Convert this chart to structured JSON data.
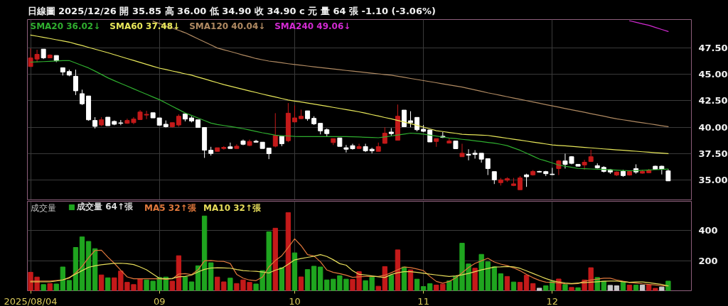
{
  "chart_data": [
    {
      "type": "candlestick",
      "title": "日線圖 2025/12/26 開 35.85 高 36.00 低 34.90 收 34.90 c 元 量 64 張 -1.10 (-3.06%)",
      "categories": [
        "2025/08/04",
        null,
        null,
        null,
        null,
        null,
        null,
        null,
        null,
        null,
        null,
        null,
        null,
        null,
        null,
        null,
        null,
        null,
        null,
        null,
        "09",
        null,
        null,
        null,
        null,
        null,
        null,
        null,
        null,
        null,
        null,
        null,
        null,
        null,
        null,
        null,
        null,
        null,
        null,
        null,
        null,
        "10",
        null,
        null,
        null,
        null,
        null,
        null,
        null,
        null,
        null,
        null,
        null,
        null,
        null,
        null,
        null,
        null,
        null,
        null,
        null,
        "11",
        null,
        null,
        null,
        null,
        null,
        null,
        null,
        null,
        null,
        null,
        null,
        null,
        null,
        null,
        null,
        null,
        null,
        null,
        null,
        "12",
        null,
        null,
        null,
        null,
        null,
        null,
        null,
        null,
        null,
        null,
        null,
        null,
        null,
        null,
        null,
        null,
        null,
        null
      ],
      "ohlc": [
        [
          45.74,
          47.46,
          45.74,
          46.56
        ],
        [
          46.45,
          47.34,
          46.16,
          46.9
        ],
        [
          47.39,
          47.39,
          46.45,
          46.56
        ],
        [
          46.56,
          46.9,
          46.56,
          46.83
        ],
        [
          46.79,
          46.79,
          46.16,
          46.29
        ],
        [
          45.63,
          45.63,
          44.89,
          45.22
        ],
        [
          45.27,
          45.45,
          44.82,
          44.93
        ],
        [
          44.82,
          45.45,
          43.04,
          43.44
        ],
        [
          43.17,
          43.55,
          42.1,
          42.21
        ],
        [
          42.95,
          42.95,
          40.6,
          40.69
        ],
        [
          40.63,
          40.94,
          39.87,
          40.07
        ],
        [
          40.2,
          40.94,
          40.09,
          40.69
        ],
        [
          40.94,
          40.94,
          40.13,
          40.13
        ],
        [
          40.54,
          40.63,
          40.18,
          40.27
        ],
        [
          40.4,
          40.67,
          40.18,
          40.36
        ],
        [
          40.36,
          40.8,
          40.31,
          40.63
        ],
        [
          40.42,
          40.94,
          40.27,
          40.76
        ],
        [
          40.71,
          41.61,
          40.67,
          41.43
        ],
        [
          41.14,
          41.54,
          40.76,
          41.21
        ],
        [
          41.36,
          41.36,
          40.87,
          40.87
        ],
        [
          40.87,
          40.87,
          40.13,
          40.18
        ],
        [
          40.27,
          40.63,
          39.96,
          40.04
        ],
        [
          40.04,
          40.42,
          39.96,
          40.42
        ],
        [
          40.2,
          41.21,
          40.04,
          41.03
        ],
        [
          41.25,
          41.25,
          40.54,
          40.76
        ],
        [
          40.87,
          41.03,
          40.45,
          40.58
        ],
        [
          40.69,
          40.69,
          39.96,
          39.96
        ],
        [
          39.96,
          39.96,
          37.08,
          37.81
        ],
        [
          37.81,
          38.13,
          37.3,
          37.5
        ],
        [
          37.7,
          38.04,
          37.7,
          38.04
        ],
        [
          37.97,
          38.19,
          37.86,
          38.08
        ],
        [
          38.13,
          38.53,
          37.97,
          37.97
        ],
        [
          37.97,
          38.37,
          37.95,
          38.19
        ],
        [
          38.68,
          38.82,
          38.28,
          38.37
        ],
        [
          38.26,
          38.82,
          38.19,
          38.64
        ],
        [
          38.66,
          38.79,
          38.53,
          38.57
        ],
        [
          38.57,
          38.57,
          37.97,
          37.97
        ],
        [
          38.01,
          38.01,
          36.96,
          37.48
        ],
        [
          38.19,
          41.32,
          38.08,
          39.2
        ],
        [
          39.13,
          39.13,
          38.19,
          38.42
        ],
        [
          38.71,
          42.28,
          38.57,
          41.32
        ],
        [
          40.49,
          42.05,
          40.42,
          40.87
        ],
        [
          40.8,
          41.65,
          40.76,
          41.03
        ],
        [
          41.54,
          41.54,
          40.6,
          40.8
        ],
        [
          40.83,
          41.03,
          40.2,
          40.31
        ],
        [
          40.36,
          40.36,
          39.31,
          39.64
        ],
        [
          39.75,
          39.87,
          39.13,
          39.38
        ],
        [
          38.53,
          38.91,
          38.3,
          38.91
        ],
        [
          38.97,
          38.97,
          38.17,
          38.17
        ],
        [
          38.04,
          38.3,
          37.59,
          37.9
        ],
        [
          38.24,
          38.42,
          37.86,
          37.95
        ],
        [
          37.97,
          38.42,
          37.92,
          38.15
        ],
        [
          38.15,
          38.42,
          37.63,
          37.75
        ],
        [
          37.9,
          38.04,
          37.52,
          37.75
        ],
        [
          37.7,
          38.53,
          37.7,
          38.15
        ],
        [
          38.46,
          39.98,
          38.42,
          39.42
        ],
        [
          39.53,
          39.91,
          39.2,
          39.38
        ],
        [
          38.75,
          42.14,
          38.75,
          41.03
        ],
        [
          41.61,
          41.61,
          40.04,
          40.04
        ],
        [
          40.6,
          41.5,
          39.98,
          40.42
        ],
        [
          40.92,
          40.92,
          39.6,
          39.75
        ],
        [
          39.8,
          40.2,
          39.53,
          39.6
        ],
        [
          39.73,
          39.73,
          38.59,
          38.59
        ],
        [
          38.64,
          38.91,
          38.13,
          38.91
        ],
        [
          39.13,
          39.53,
          38.97,
          39.02
        ],
        [
          38.48,
          38.97,
          38.46,
          38.68
        ],
        [
          38.68,
          38.68,
          37.95,
          37.95
        ],
        [
          37.19,
          38.42,
          37.19,
          37.52
        ],
        [
          37.41,
          37.9,
          36.85,
          37.34
        ],
        [
          37.52,
          37.81,
          37.01,
          37.41
        ],
        [
          37.52,
          37.52,
          36.63,
          36.96
        ],
        [
          37.01,
          37.01,
          35.45,
          36.07
        ],
        [
          35.78,
          35.78,
          34.6,
          35.0
        ],
        [
          34.73,
          35.18,
          34.46,
          35.0
        ],
        [
          34.96,
          35.25,
          34.8,
          35.11
        ],
        [
          34.46,
          35.18,
          34.4,
          34.62
        ],
        [
          34.06,
          35.36,
          34.06,
          35.18
        ],
        [
          35.47,
          35.58,
          34.33,
          35.29
        ],
        [
          35.47,
          35.92,
          35.4,
          35.8
        ],
        [
          35.8,
          35.85,
          35.69,
          35.74
        ],
        [
          35.78,
          35.85,
          35.36,
          35.58
        ],
        [
          35.54,
          36.14,
          35.45,
          35.49
        ],
        [
          36.07,
          36.88,
          35.45,
          36.79
        ],
        [
          36.79,
          37.48,
          36.07,
          36.47
        ],
        [
          37.19,
          37.25,
          36.47,
          36.56
        ],
        [
          36.47,
          36.47,
          36.29,
          36.29
        ],
        [
          36.41,
          36.9,
          35.96,
          36.67
        ],
        [
          36.74,
          37.86,
          36.7,
          37.19
        ],
        [
          36.34,
          36.56,
          36.07,
          36.14
        ],
        [
          36.18,
          36.29,
          35.69,
          35.8
        ],
        [
          35.96,
          36.03,
          35.56,
          35.74
        ],
        [
          35.45,
          35.8,
          35.36,
          35.74
        ],
        [
          35.8,
          35.96,
          35.29,
          35.4
        ],
        [
          35.45,
          35.85,
          35.4,
          35.78
        ],
        [
          36.07,
          36.47,
          35.58,
          35.74
        ],
        [
          35.63,
          35.96,
          35.58,
          35.8
        ],
        [
          35.67,
          36.03,
          35.63,
          35.89
        ],
        [
          36.29,
          36.34,
          35.96,
          36.0
        ],
        [
          36.29,
          36.34,
          35.51,
          36.0
        ],
        [
          35.85,
          36.0,
          34.9,
          34.9
        ]
      ],
      "colors": [
        "#c41a1a",
        "#c41a1a",
        "#ffffff",
        "#c41a1a",
        "#ffffff",
        "#ffffff",
        "#ffffff",
        "#ffffff",
        "#ffffff",
        "#ffffff",
        "#ffffff",
        "#c41a1a",
        "#ffffff",
        "#ffffff",
        "#ffffff",
        "#c41a1a",
        "#c41a1a",
        "#c41a1a",
        "#c41a1a",
        "#ffffff",
        "#ffffff",
        "#ffffff",
        "#c41a1a",
        "#c41a1a",
        "#ffffff",
        "#ffffff",
        "#ffffff",
        "#ffffff",
        "#ffffff",
        "#c41a1a",
        "#c41a1a",
        "#ffffff",
        "#c41a1a",
        "#ffffff",
        "#c41a1a",
        "#ffffff",
        "#ffffff",
        "#ffffff",
        "#c41a1a",
        "#ffffff",
        "#c41a1a",
        "#c41a1a",
        "#c41a1a",
        "#ffffff",
        "#ffffff",
        "#ffffff",
        "#ffffff",
        "#c41a1a",
        "#ffffff",
        "#ffffff",
        "#ffffff",
        "#c41a1a",
        "#ffffff",
        "#ffffff",
        "#c41a1a",
        "#c41a1a",
        "#ffffff",
        "#c41a1a",
        "#ffffff",
        "#ffffff",
        "#ffffff",
        "#ffffff",
        "#ffffff",
        "#c41a1a",
        "#ffffff",
        "#c41a1a",
        "#ffffff",
        "#c41a1a",
        "#ffffff",
        "#ffffff",
        "#ffffff",
        "#ffffff",
        "#ffffff",
        "#c41a1a",
        "#c41a1a",
        "#c41a1a",
        "#c41a1a",
        "#ffffff",
        "#c41a1a",
        "#ffffff",
        "#ffffff",
        "#ffffff",
        "#c41a1a",
        "#ffffff",
        "#ffffff",
        "#ffffff",
        "#c41a1a",
        "#c41a1a",
        "#ffffff",
        "#ffffff",
        "#ffffff",
        "#c41a1a",
        "#ffffff",
        "#c41a1a",
        "#ffffff",
        "#c41a1a",
        "#c41a1a",
        "#ffffff",
        "#ffffff",
        "#ffffff"
      ],
      "series": [
        {
          "name": "SMA20 36.02↓",
          "type": "line",
          "color": "#2fae2f",
          "values": [
            46.16,
            46.19,
            46.21,
            46.24,
            46.27,
            46.3,
            46.31,
            46.08,
            45.84,
            45.61,
            45.31,
            44.99,
            44.67,
            44.4,
            44.14,
            43.89,
            43.63,
            43.37,
            43.11,
            42.85,
            42.6,
            42.29,
            41.97,
            41.66,
            41.34,
            41.1,
            40.86,
            40.62,
            40.38,
            40.25,
            40.15,
            40.06,
            39.96,
            39.85,
            39.72,
            39.59,
            39.46,
            39.35,
            39.23,
            39.19,
            39.16,
            39.12,
            39.1,
            39.1,
            39.1,
            39.1,
            39.1,
            39.1,
            39.1,
            39.1,
            39.08,
            39.06,
            39.03,
            39.01,
            38.99,
            39.07,
            39.16,
            39.25,
            39.34,
            39.43,
            39.39,
            39.33,
            39.24,
            39.15,
            39.06,
            38.97,
            38.91,
            38.84,
            38.78,
            38.7,
            38.63,
            38.55,
            38.48,
            38.37,
            38.24,
            38.02,
            37.8,
            37.53,
            37.25,
            36.97,
            36.79,
            36.6,
            36.4,
            36.29,
            36.19,
            36.08,
            36.05,
            36.03,
            36.0,
            35.98,
            35.95,
            35.92,
            35.89,
            35.86,
            35.87,
            35.9,
            35.93,
            35.96,
            35.99,
            36.02
          ]
        },
        {
          "name": "SMA60 37.48↓",
          "type": "line",
          "color": "#e8e85a",
          "values": [
            48.73,
            48.62,
            48.51,
            48.4,
            48.28,
            48.17,
            48.06,
            47.89,
            47.73,
            47.56,
            47.39,
            47.22,
            47.05,
            46.87,
            46.68,
            46.5,
            46.32,
            46.14,
            45.95,
            45.77,
            45.59,
            45.46,
            45.32,
            45.19,
            45.05,
            44.92,
            44.74,
            44.57,
            44.39,
            44.21,
            44.03,
            43.88,
            43.73,
            43.58,
            43.43,
            43.28,
            43.13,
            42.99,
            42.85,
            42.71,
            42.57,
            42.47,
            42.38,
            42.28,
            42.18,
            42.08,
            41.98,
            41.87,
            41.77,
            41.66,
            41.56,
            41.45,
            41.32,
            41.18,
            41.05,
            40.91,
            40.78,
            40.63,
            40.48,
            40.33,
            40.16,
            40.0,
            39.83,
            39.66,
            39.58,
            39.49,
            39.41,
            39.32,
            39.29,
            39.27,
            39.24,
            39.21,
            39.12,
            39.03,
            38.94,
            38.85,
            38.76,
            38.67,
            38.58,
            38.49,
            38.4,
            38.31,
            38.26,
            38.22,
            38.17,
            38.12,
            38.07,
            38.03,
            37.98,
            37.93,
            37.89,
            37.84,
            37.8,
            37.75,
            37.71,
            37.66,
            37.62,
            37.57,
            37.53,
            37.48
          ]
        },
        {
          "name": "SMA120 40.04↓",
          "type": "line",
          "color": "#b08a62",
          "values": [
            null,
            null,
            null,
            null,
            null,
            null,
            null,
            null,
            null,
            null,
            null,
            null,
            null,
            null,
            null,
            null,
            null,
            null,
            null,
            50.04,
            49.82,
            49.6,
            49.39,
            49.17,
            48.95,
            48.66,
            48.37,
            48.08,
            47.79,
            47.5,
            47.33,
            47.17,
            47.0,
            46.83,
            46.67,
            46.5,
            46.38,
            46.26,
            46.18,
            46.1,
            46.01,
            45.93,
            45.86,
            45.79,
            45.72,
            45.65,
            45.58,
            45.51,
            45.44,
            45.37,
            45.31,
            45.24,
            45.18,
            45.11,
            45.05,
            44.98,
            44.92,
            44.82,
            44.72,
            44.61,
            44.51,
            44.41,
            44.31,
            44.21,
            44.1,
            44.0,
            43.9,
            43.8,
            43.66,
            43.53,
            43.39,
            43.25,
            43.13,
            43.0,
            42.88,
            42.75,
            42.63,
            42.51,
            42.38,
            42.26,
            42.13,
            42.01,
            41.89,
            41.76,
            41.64,
            41.52,
            41.4,
            41.27,
            41.15,
            41.03,
            40.9,
            40.78,
            40.69,
            40.6,
            40.5,
            40.41,
            40.32,
            40.23,
            40.13,
            40.04
          ]
        },
        {
          "name": "SMA240 49.06↓",
          "type": "line",
          "color": "#d22ad2",
          "values": [
            null,
            null,
            null,
            null,
            null,
            null,
            null,
            null,
            null,
            null,
            null,
            null,
            null,
            null,
            null,
            null,
            null,
            null,
            null,
            null,
            null,
            null,
            null,
            null,
            null,
            null,
            null,
            null,
            null,
            null,
            null,
            null,
            null,
            null,
            null,
            null,
            null,
            null,
            null,
            null,
            null,
            null,
            null,
            null,
            null,
            null,
            null,
            null,
            null,
            null,
            null,
            null,
            null,
            null,
            null,
            null,
            null,
            null,
            null,
            null,
            null,
            null,
            null,
            null,
            null,
            null,
            null,
            null,
            null,
            null,
            null,
            null,
            null,
            null,
            null,
            null,
            null,
            null,
            null,
            null,
            null,
            null,
            null,
            null,
            null,
            null,
            null,
            null,
            null,
            null,
            null,
            null,
            null,
            50.08,
            49.94,
            49.79,
            49.65,
            49.45,
            49.26,
            49.06
          ]
        }
      ],
      "ylim": [
        33.1,
        50.2
      ],
      "yticks": [
        {
          "value": 35,
          "label": "35.00"
        },
        {
          "value": 37.5,
          "label": "37.50"
        },
        {
          "value": 40,
          "label": "40.00"
        },
        {
          "value": 42.5,
          "label": "42.50"
        },
        {
          "value": 45,
          "label": "45.00"
        },
        {
          "value": 47.5,
          "label": "47.50"
        }
      ],
      "grid": true,
      "legend": "top left",
      "tick_labels": "y"
    },
    {
      "type": "bar",
      "title": "成交量",
      "categories": [
        "2025/08/04",
        null,
        null,
        null,
        null,
        null,
        null,
        null,
        null,
        null,
        null,
        null,
        null,
        null,
        null,
        null,
        null,
        null,
        null,
        null,
        "09",
        null,
        null,
        null,
        null,
        null,
        null,
        null,
        null,
        null,
        null,
        null,
        null,
        null,
        null,
        null,
        null,
        null,
        null,
        null,
        null,
        "10",
        null,
        null,
        null,
        null,
        null,
        null,
        null,
        null,
        null,
        null,
        null,
        null,
        null,
        null,
        null,
        null,
        null,
        null,
        null,
        "11",
        null,
        null,
        null,
        null,
        null,
        null,
        null,
        null,
        null,
        null,
        null,
        null,
        null,
        null,
        null,
        null,
        null,
        null,
        null,
        "12",
        null,
        null,
        null,
        null,
        null,
        null,
        null,
        null,
        null,
        null,
        null,
        null,
        null,
        null,
        null,
        null,
        null,
        null
      ],
      "series": [
        {
          "name": "成交量 64↑張",
          "type": "bar",
          "values": [
            123,
            91,
            41,
            48,
            45,
            158,
            69,
            288,
            358,
            328,
            280,
            105,
            86,
            86,
            131,
            56,
            41,
            80,
            72,
            64,
            88,
            91,
            64,
            233,
            92,
            59,
            166,
            497,
            186,
            91,
            59,
            84,
            48,
            72,
            56,
            45,
            134,
            392,
            416,
            153,
            520,
            252,
            92,
            141,
            163,
            158,
            72,
            77,
            100,
            77,
            75,
            127,
            67,
            91,
            30,
            161,
            103,
            272,
            158,
            139,
            77,
            28,
            47,
            38,
            44,
            66,
            94,
            316,
            178,
            150,
            242,
            192,
            159,
            113,
            95,
            58,
            56,
            103,
            48,
            17,
            33,
            63,
            78,
            41,
            22,
            20,
            72,
            153,
            88,
            63,
            36,
            33,
            56,
            38,
            38,
            38,
            38,
            16,
            25,
            64
          ],
          "colors": [
            "#c41a1a",
            "#c41a1a",
            "#1fa51f",
            "#c41a1a",
            "#1fa51f",
            "#1fa51f",
            "#1fa51f",
            "#1fa51f",
            "#1fa51f",
            "#1fa51f",
            "#1fa51f",
            "#c41a1a",
            "#1fa51f",
            "#c41a1a",
            "#c41a1a",
            "#c41a1a",
            "#c41a1a",
            "#c41a1a",
            "#1fa51f",
            "#1fa51f",
            "#1fa51f",
            "#1fa51f",
            "#c41a1a",
            "#c41a1a",
            "#1fa51f",
            "#1fa51f",
            "#1fa51f",
            "#1fa51f",
            "#1fa51f",
            "#c41a1a",
            "#c41a1a",
            "#1fa51f",
            "#c41a1a",
            "#c41a1a",
            "#c41a1a",
            "#1fa51f",
            "#1fa51f",
            "#1fa51f",
            "#c41a1a",
            "#1fa51f",
            "#c41a1a",
            "#1fa51f",
            "#c41a1a",
            "#1fa51f",
            "#1fa51f",
            "#1fa51f",
            "#1fa51f",
            "#1fa51f",
            "#1fa51f",
            "#1fa51f",
            "#c41a1a",
            "#c41a1a",
            "#1fa51f",
            "#1fa51f",
            "#c41a1a",
            "#c41a1a",
            "#1fa51f",
            "#c41a1a",
            "#1fa51f",
            "#c41a1a",
            "#1fa51f",
            "#1fa51f",
            "#1fa51f",
            "#c41a1a",
            "#c41a1a",
            "#1fa51f",
            "#1fa51f",
            "#1fa51f",
            "#1fa51f",
            "#c41a1a",
            "#1fa51f",
            "#1fa51f",
            "#1fa51f",
            "#1fa51f",
            "#c41a1a",
            "#1fa51f",
            "#c41a1a",
            "#c41a1a",
            "#c41a1a",
            "#c8c8c8",
            "#1fa51f",
            "#1fa51f",
            "#c41a1a",
            "#1fa51f",
            "#c41a1a",
            "#1fa51f",
            "#c41a1a",
            "#c41a1a",
            "#1fa51f",
            "#1fa51f",
            "#c8c8c8",
            "#c8c8c8",
            "#1fa51f",
            "#c41a1a",
            "#1fa51f",
            "#c8c8c8",
            "#c41a1a",
            "#c41a1a",
            "#c8c8c8",
            "#1fa51f"
          ]
        },
        {
          "name": "MA5 32↑張",
          "type": "line",
          "color": "#e0783c",
          "values": [
            64,
            64,
            64,
            64,
            68,
            72,
            84,
            118,
            162,
            219,
            268,
            270,
            224,
            183,
            136,
            92,
            80,
            80,
            80,
            80,
            80,
            76,
            79,
            111,
            114,
            107,
            139,
            199,
            201,
            197,
            195,
            181,
            109,
            84,
            71,
            67,
            91,
            158,
            201,
            233,
            288,
            345,
            300,
            240,
            231,
            193,
            138,
            122,
            114,
            103,
            89,
            93,
            95,
            95,
            95,
            103,
            120,
            139,
            158,
            154,
            145,
            134,
            95,
            62,
            50,
            62,
            85,
            119,
            155,
            182,
            199,
            216,
            191,
            177,
            167,
            152,
            133,
            109,
            87,
            69,
            57,
            56,
            51,
            47,
            45,
            48,
            63,
            71,
            77,
            83,
            83,
            72,
            63,
            55,
            51,
            46,
            42,
            38,
            33,
            32
          ]
        },
        {
          "name": "MA10 32↑張",
          "type": "line",
          "color": "#e6dc5a",
          "values": [
            59,
            59,
            59,
            59,
            65,
            72,
            88,
            111,
            134,
            156,
            166,
            173,
            178,
            182,
            183,
            180,
            174,
            158,
            139,
            111,
            83,
            80,
            82,
            93,
            95,
            104,
            125,
            142,
            151,
            153,
            152,
            150,
            141,
            134,
            131,
            129,
            125,
            118,
            137,
            149,
            176,
            205,
            214,
            222,
            230,
            240,
            228,
            206,
            180,
            170,
            133,
            109,
            105,
            99,
            93,
            88,
            108,
            120,
            127,
            127,
            122,
            116,
            110,
            105,
            100,
            95,
            99,
            106,
            115,
            127,
            139,
            148,
            158,
            159,
            161,
            159,
            149,
            132,
            115,
            98,
            81,
            67,
            58,
            52,
            48,
            51,
            54,
            57,
            60,
            63,
            64,
            64,
            60,
            56,
            58,
            58,
            54,
            48,
            42,
            32
          ]
        }
      ],
      "ylim": [
        0,
        595
      ],
      "yticks": [
        200,
        400
      ],
      "grid": true,
      "legend": "top left"
    }
  ]
}
